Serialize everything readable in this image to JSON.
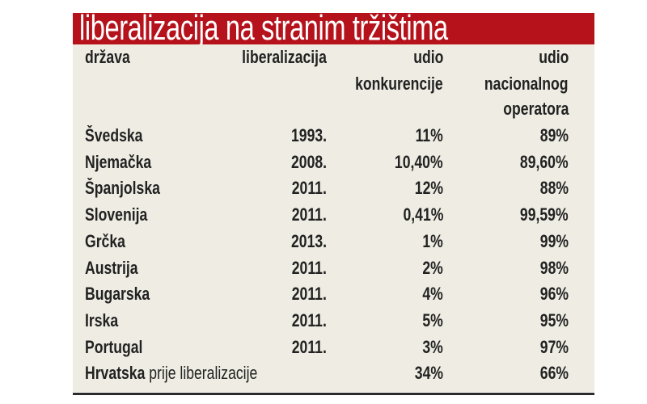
{
  "title": "liberalizacija na stranim tržištima",
  "headers": {
    "country": "država",
    "liberalization": "liberalizacija",
    "competition": [
      "udio",
      "konkurencije"
    ],
    "national": [
      "udio",
      "nacionalnog",
      "operatora"
    ]
  },
  "rows": [
    {
      "country": "Švedska",
      "year": "1993.",
      "competition": "11%",
      "national": "89%"
    },
    {
      "country": "Njemačka",
      "year": "2008.",
      "competition": "10,40%",
      "national": "89,60%"
    },
    {
      "country": "Španjolska",
      "year": "2011.",
      "competition": "12%",
      "national": "88%"
    },
    {
      "country": "Slovenija",
      "year": "2011.",
      "competition": "0,41%",
      "national": "99,59%"
    },
    {
      "country": "Grčka",
      "year": "2013.",
      "competition": "1%",
      "national": "99%"
    },
    {
      "country": "Austrija",
      "year": "2011.",
      "competition": "2%",
      "national": "98%"
    },
    {
      "country": "Bugarska",
      "year": "2011.",
      "competition": "4%",
      "national": "96%"
    },
    {
      "country": "Irska",
      "year": "2011.",
      "competition": "5%",
      "national": "95%"
    },
    {
      "country": "Portugal",
      "year": "2011.",
      "competition": "3%",
      "national": "97%"
    }
  ],
  "footer_row": {
    "country": "Hrvatska",
    "note": "prije liberalizacije",
    "competition": "34%",
    "national": "66%"
  }
}
